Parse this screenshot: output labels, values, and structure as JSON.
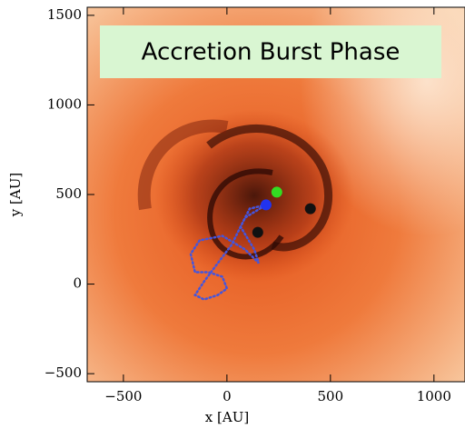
{
  "chart_data": {
    "type": "image",
    "title": "Accretion Burst Phase",
    "xlabel": "x [AU]",
    "ylabel": "y [AU]",
    "xlim": [
      -675,
      1150
    ],
    "ylim": [
      -545,
      1545
    ],
    "xticks": [
      {
        "value": -500,
        "label": "−500"
      },
      0,
      500,
      1000
    ],
    "yticks": [
      {
        "value": -500,
        "label": "−500"
      },
      0,
      500,
      1000,
      1500
    ],
    "points": [
      {
        "x": 241,
        "y": 513,
        "color": "#33dd22"
      },
      {
        "x": 189,
        "y": 442,
        "color": "#2233ee"
      },
      {
        "x": 403,
        "y": 421,
        "color": "#111111"
      },
      {
        "x": 149,
        "y": 289,
        "color": "#111111"
      }
    ],
    "trajectory": {
      "color": "#4455dd",
      "x": [
        189,
        110,
        66,
        132,
        154,
        88,
        -22,
        -132,
        -175,
        -154,
        -88,
        -22,
        0,
        -44,
        -110,
        -154,
        -110,
        -44,
        22,
        88,
        189
      ],
      "y": [
        442,
        421,
        320,
        193,
        117,
        193,
        269,
        244,
        168,
        66,
        66,
        41,
        -25,
        -61,
        -86,
        -61,
        15,
        117,
        218,
        371,
        442
      ]
    }
  }
}
